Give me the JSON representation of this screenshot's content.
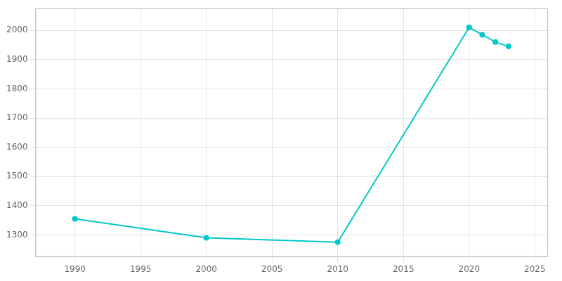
{
  "chart_data": {
    "type": "line",
    "x": [
      1990,
      2000,
      2010,
      2020,
      2021,
      2022,
      2023
    ],
    "values": [
      1355,
      1290,
      1275,
      2010,
      1985,
      1960,
      1945
    ],
    "color": "#00C8C8",
    "marker": "circle",
    "xlim": [
      1987,
      2026
    ],
    "ylim": [
      1225,
      2075
    ],
    "xticks": [
      1990,
      1995,
      2000,
      2005,
      2010,
      2015,
      2020,
      2025
    ],
    "yticks": [
      1300,
      1400,
      1500,
      1600,
      1700,
      1800,
      1900,
      2000
    ],
    "grid": true
  }
}
